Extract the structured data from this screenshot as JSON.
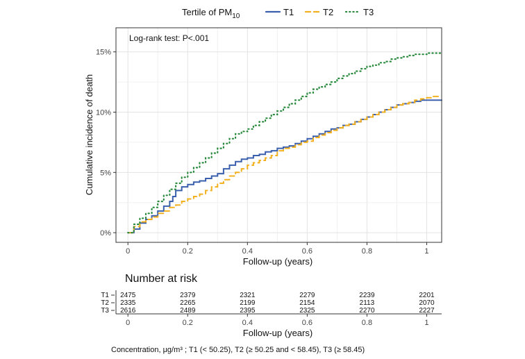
{
  "chart_data": {
    "type": "line",
    "legend": {
      "title_main": "Tertile of PM",
      "title_sub": "10",
      "placement": "top"
    },
    "annotation": "Log-rank test: P<.001",
    "xlabel": "Follow-up (years)",
    "ylabel": "Cumulative incidence of death",
    "xlim": [
      -0.04,
      1.05
    ],
    "ylim": [
      -0.008,
      0.17
    ],
    "x_ticks": [
      0,
      0.2,
      0.4,
      0.6,
      0.8,
      1
    ],
    "x_tick_labels": [
      "0",
      "0.2",
      "0.4",
      "0.6",
      "0.8",
      "1"
    ],
    "y_ticks": [
      0,
      0.05,
      0.1,
      0.15
    ],
    "y_tick_labels": [
      "0%",
      "5%",
      "10%",
      "15%"
    ],
    "grid": true,
    "series": [
      {
        "name": "T1",
        "color": "#3a5fad",
        "dash": "solid",
        "x": [
          0,
          0.02,
          0.04,
          0.06,
          0.08,
          0.1,
          0.12,
          0.14,
          0.15,
          0.16,
          0.18,
          0.2,
          0.22,
          0.24,
          0.26,
          0.28,
          0.3,
          0.32,
          0.34,
          0.36,
          0.38,
          0.4,
          0.42,
          0.44,
          0.46,
          0.48,
          0.5,
          0.52,
          0.54,
          0.56,
          0.58,
          0.6,
          0.62,
          0.64,
          0.66,
          0.68,
          0.7,
          0.72,
          0.74,
          0.76,
          0.78,
          0.8,
          0.82,
          0.84,
          0.86,
          0.88,
          0.9,
          0.92,
          0.94,
          0.96,
          0.98,
          1.0,
          1.05
        ],
        "y": [
          0,
          0.003,
          0.008,
          0.011,
          0.014,
          0.018,
          0.022,
          0.026,
          0.03,
          0.035,
          0.038,
          0.04,
          0.042,
          0.043,
          0.045,
          0.047,
          0.049,
          0.053,
          0.056,
          0.059,
          0.061,
          0.062,
          0.064,
          0.065,
          0.067,
          0.068,
          0.07,
          0.071,
          0.072,
          0.074,
          0.076,
          0.078,
          0.08,
          0.082,
          0.084,
          0.086,
          0.087,
          0.089,
          0.09,
          0.092,
          0.094,
          0.096,
          0.098,
          0.1,
          0.102,
          0.104,
          0.106,
          0.107,
          0.108,
          0.109,
          0.11,
          0.11,
          0.11
        ]
      },
      {
        "name": "T2",
        "color": "#f2b01e",
        "dash": "dashed",
        "x": [
          0,
          0.02,
          0.04,
          0.06,
          0.08,
          0.1,
          0.12,
          0.14,
          0.16,
          0.18,
          0.2,
          0.22,
          0.24,
          0.26,
          0.28,
          0.3,
          0.32,
          0.34,
          0.36,
          0.38,
          0.4,
          0.42,
          0.44,
          0.46,
          0.48,
          0.5,
          0.52,
          0.54,
          0.56,
          0.58,
          0.6,
          0.62,
          0.64,
          0.66,
          0.68,
          0.7,
          0.72,
          0.74,
          0.76,
          0.78,
          0.8,
          0.82,
          0.84,
          0.86,
          0.88,
          0.9,
          0.92,
          0.94,
          0.96,
          0.98,
          1.0,
          1.02,
          1.05
        ],
        "y": [
          0,
          0.005,
          0.009,
          0.011,
          0.013,
          0.016,
          0.018,
          0.021,
          0.023,
          0.026,
          0.028,
          0.03,
          0.032,
          0.035,
          0.038,
          0.041,
          0.044,
          0.047,
          0.05,
          0.053,
          0.056,
          0.058,
          0.06,
          0.062,
          0.064,
          0.068,
          0.07,
          0.071,
          0.073,
          0.075,
          0.076,
          0.079,
          0.081,
          0.083,
          0.085,
          0.087,
          0.089,
          0.09,
          0.092,
          0.094,
          0.096,
          0.098,
          0.1,
          0.102,
          0.104,
          0.106,
          0.107,
          0.108,
          0.11,
          0.111,
          0.112,
          0.113,
          0.113
        ]
      },
      {
        "name": "T3",
        "color": "#2a8a3e",
        "dash": "dotted",
        "x": [
          0,
          0.02,
          0.04,
          0.06,
          0.08,
          0.1,
          0.12,
          0.14,
          0.16,
          0.18,
          0.2,
          0.22,
          0.24,
          0.26,
          0.28,
          0.3,
          0.32,
          0.34,
          0.36,
          0.38,
          0.4,
          0.42,
          0.44,
          0.46,
          0.48,
          0.5,
          0.52,
          0.54,
          0.56,
          0.58,
          0.6,
          0.62,
          0.64,
          0.66,
          0.68,
          0.7,
          0.72,
          0.74,
          0.76,
          0.78,
          0.8,
          0.82,
          0.84,
          0.86,
          0.88,
          0.9,
          0.92,
          0.94,
          0.96,
          0.98,
          1.0,
          1.02,
          1.05
        ],
        "y": [
          0,
          0.007,
          0.012,
          0.016,
          0.021,
          0.026,
          0.031,
          0.036,
          0.041,
          0.046,
          0.05,
          0.054,
          0.058,
          0.062,
          0.066,
          0.07,
          0.074,
          0.078,
          0.082,
          0.084,
          0.086,
          0.089,
          0.092,
          0.095,
          0.098,
          0.101,
          0.104,
          0.107,
          0.11,
          0.113,
          0.116,
          0.119,
          0.121,
          0.123,
          0.125,
          0.128,
          0.13,
          0.132,
          0.134,
          0.136,
          0.138,
          0.139,
          0.141,
          0.142,
          0.144,
          0.145,
          0.146,
          0.147,
          0.148,
          0.148,
          0.149,
          0.149,
          0.149
        ]
      }
    ]
  },
  "risk_table": {
    "title": "Number at risk",
    "xlabel": "Follow-up (years)",
    "x_ticks": [
      "0",
      "0.2",
      "0.4",
      "0.6",
      "0.8",
      "1"
    ],
    "rows": [
      {
        "label": "T1",
        "color": "#3a5fad",
        "values": [
          "2475",
          "2379",
          "2321",
          "2279",
          "2239",
          "2201"
        ]
      },
      {
        "label": "T2",
        "color": "#f2b01e",
        "values": [
          "2335",
          "2265",
          "2199",
          "2154",
          "2113",
          "2070"
        ]
      },
      {
        "label": "T3",
        "color": "#2a8a3e",
        "values": [
          "2616",
          "2489",
          "2395",
          "2325",
          "2270",
          "2227"
        ]
      }
    ]
  },
  "footnote": "Concentration, μg/m³ ; T1 (< 50.25), T2 (≥ 50.25 and < 58.45), T3 (≥ 58.45)"
}
